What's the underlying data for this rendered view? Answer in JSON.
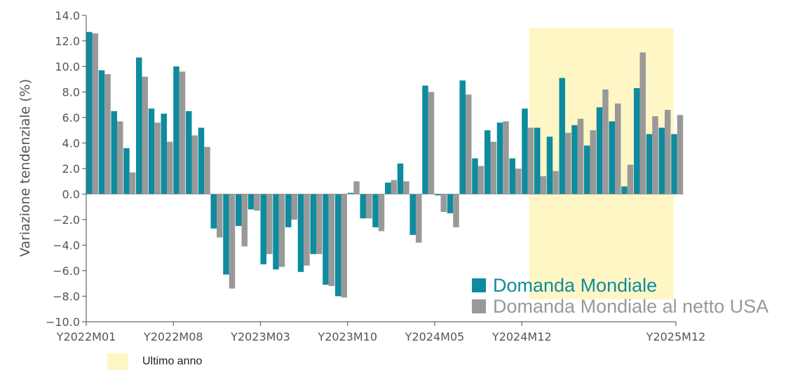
{
  "chart_data": {
    "type": "bar",
    "title": "",
    "ylabel": "Variazione tendenziale (%)",
    "ylim": [
      -10,
      14
    ],
    "yticks": [
      14,
      12,
      10,
      8,
      6,
      4,
      2,
      0,
      -2,
      -4,
      -6,
      -8,
      -10
    ],
    "ytick_labels": [
      "14.0",
      "12.0",
      "10.0",
      "8.0",
      "6.0",
      "4.0",
      "2.0",
      "0.0",
      "−2.0",
      "−4.0",
      "−6.0",
      "−8.0",
      "−10.0"
    ],
    "categories": [
      "Y2022M01",
      "Y2022M02",
      "Y2022M03",
      "Y2022M04",
      "Y2022M05",
      "Y2022M06",
      "Y2022M07",
      "Y2022M08",
      "Y2022M09",
      "Y2022M10",
      "Y2022M11",
      "Y2022M12",
      "Y2023M01",
      "Y2023M02",
      "Y2023M03",
      "Y2023M04",
      "Y2023M05",
      "Y2023M06",
      "Y2023M07",
      "Y2023M08",
      "Y2023M09",
      "Y2023M10",
      "Y2023M11",
      "Y2023M12",
      "Y2024M01",
      "Y2024M02",
      "Y2024M03",
      "Y2024M04",
      "Y2024M05",
      "Y2024M06",
      "Y2024M07",
      "Y2024M08",
      "Y2024M09",
      "Y2024M10",
      "Y2024M11",
      "Y2024M12",
      "Y2025M01",
      "Y2025M02",
      "Y2025M03",
      "Y2025M04",
      "Y2025M05",
      "Y2025M06",
      "Y2025M07",
      "Y2025M08",
      "Y2025M09",
      "Y2025M10",
      "Y2025M11",
      "Y2025M12"
    ],
    "xtick_labels": [
      {
        "index": 0,
        "label": "Y2022M01"
      },
      {
        "index": 7,
        "label": "Y2022M08"
      },
      {
        "index": 14,
        "label": "Y2023M03"
      },
      {
        "index": 21,
        "label": "Y2023M10"
      },
      {
        "index": 28,
        "label": "Y2024M05"
      },
      {
        "index": 35,
        "label": "Y2024M12"
      },
      {
        "index": 47,
        "label": "Y2025M12"
      }
    ],
    "series": [
      {
        "name": "Domanda Mondiale",
        "color": "#0e8b9e",
        "values": [
          12.7,
          9.7,
          6.5,
          3.6,
          10.7,
          6.7,
          6.3,
          10.0,
          6.5,
          5.2,
          -2.7,
          -6.3,
          -2.5,
          -1.2,
          -5.5,
          -5.9,
          -2.6,
          -6.1,
          -4.7,
          -7.1,
          -8.0,
          0.1,
          -1.9,
          -2.6,
          0.9,
          2.4,
          -3.2,
          8.5,
          -0.1,
          -1.5,
          8.9,
          2.8,
          5.0,
          5.6,
          2.8,
          6.7,
          5.2,
          4.5,
          9.1,
          5.4,
          3.8,
          6.8,
          5.7,
          0.6,
          8.3,
          4.7,
          5.2,
          4.7
        ]
      },
      {
        "name": "Domanda Mondiale al netto USA",
        "color": "#999999",
        "values": [
          12.6,
          9.4,
          5.7,
          1.7,
          9.2,
          5.6,
          4.1,
          9.6,
          4.6,
          3.7,
          -3.4,
          -7.4,
          -4.1,
          -1.3,
          -4.7,
          -5.7,
          -2.0,
          -5.6,
          -4.7,
          -7.2,
          -8.1,
          1.0,
          -1.9,
          -2.9,
          1.1,
          1.0,
          -3.8,
          8.0,
          -1.4,
          -2.6,
          7.8,
          2.2,
          4.1,
          5.7,
          2.0,
          5.2,
          1.4,
          1.8,
          4.8,
          5.9,
          5.0,
          8.2,
          7.1,
          2.3,
          11.1,
          6.1,
          6.6,
          6.2
        ]
      }
    ],
    "highlight": {
      "start_index": 36,
      "end_index": 47,
      "color": "#fff6c6",
      "label": "Ultimo anno"
    },
    "legend_placement": "bottom-right",
    "grid": false
  }
}
